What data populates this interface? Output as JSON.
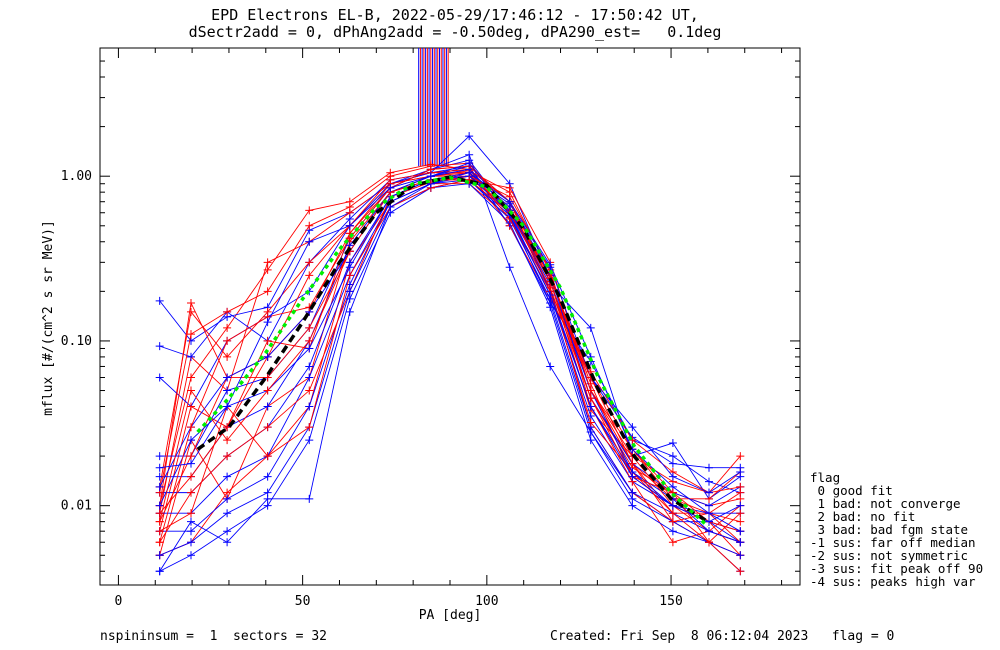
{
  "title_line1": "EPD Electrons EL-B, 2022-05-29/17:46:12 - 17:50:42 UT,",
  "title_line2": "dSectr2add = 0, dPhAng2add = -0.50deg, dPA290_est=   0.1deg",
  "footer_left": "nspininsum =  1  sectors = 32",
  "footer_right": "Created: Fri Sep  8 06:12:04 2023   flag = 0",
  "legend": {
    "title": "flag",
    "items": [
      " 0 good fit",
      " 1 bad: not converge",
      " 2 bad: no fit",
      " 3 bad: bad fgm state",
      "-1 sus: far off median",
      "-2 sus: not symmetric",
      "-3 sus: fit peak off 90",
      "-4 sus: peaks high var"
    ]
  },
  "chart_data": {
    "type": "line",
    "title": "EPD Electrons EL-B, 2022-05-29/17:46:12 - 17:50:42 UT, dSectr2add = 0, dPhAng2add = -0.50deg, dPA290_est=   0.1deg",
    "xlabel": "PA [deg]",
    "ylabel": "mflux [#/(cm^2 s sr MeV)]",
    "xlim": [
      -5,
      185
    ],
    "ylim": [
      0.0033,
      6.0
    ],
    "yscale": "log",
    "x_ticks": [
      0,
      50,
      100,
      150
    ],
    "y_ticks": [
      0.01,
      0.1,
      1.0
    ],
    "y_tick_labels": [
      "0.01",
      "0.10",
      "1.00"
    ],
    "grid": false,
    "colors": {
      "red": "#ff0000",
      "blue": "#0000ff",
      "green": "#00ee00",
      "black": "#000000"
    },
    "pa_bins": [
      11.2,
      19.7,
      29.5,
      40.5,
      51.8,
      62.8,
      73.8,
      84.8,
      95.2,
      106.2,
      117.2,
      128.2,
      139.5,
      150.5,
      160.3,
      168.8
    ],
    "red_traces": [
      [
        0.01,
        0.06,
        0.12,
        0.27,
        0.62,
        0.7,
        1.05,
        1.18,
        1.1,
        0.7,
        0.2,
        0.06,
        0.022,
        0.012,
        0.01,
        0.011
      ],
      [
        0.009,
        0.08,
        0.05,
        0.3,
        0.4,
        0.6,
        0.9,
        1.05,
        1.05,
        0.65,
        0.23,
        0.045,
        0.018,
        0.011,
        0.009,
        0.008
      ],
      [
        0.013,
        0.15,
        0.08,
        0.15,
        0.3,
        0.5,
        0.9,
        1.0,
        1.0,
        0.62,
        0.25,
        0.055,
        0.015,
        0.01,
        0.007,
        0.01
      ],
      [
        0.007,
        0.04,
        0.03,
        0.08,
        0.15,
        0.45,
        0.85,
        1.1,
        1.15,
        0.7,
        0.23,
        0.038,
        0.02,
        0.014,
        0.012,
        0.02
      ],
      [
        0.005,
        0.025,
        0.011,
        0.04,
        0.06,
        0.4,
        0.8,
        0.95,
        1.05,
        0.6,
        0.25,
        0.05,
        0.018,
        0.009,
        0.009,
        0.006
      ],
      [
        0.005,
        0.006,
        0.012,
        0.02,
        0.04,
        0.3,
        0.7,
        0.9,
        0.9,
        0.56,
        0.21,
        0.03,
        0.012,
        0.008,
        0.006,
        0.005
      ],
      [
        0.008,
        0.02,
        0.06,
        0.06,
        0.12,
        0.35,
        0.8,
        1.0,
        1.05,
        0.5,
        0.18,
        0.065,
        0.025,
        0.016,
        0.012,
        0.013
      ],
      [
        0.012,
        0.11,
        0.15,
        0.2,
        0.5,
        0.65,
        1.0,
        1.15,
        1.2,
        0.62,
        0.21,
        0.045,
        0.017,
        0.012,
        0.008,
        0.005
      ],
      [
        0.006,
        0.012,
        0.02,
        0.03,
        0.05,
        0.2,
        0.75,
        0.92,
        1.0,
        0.75,
        0.27,
        0.04,
        0.014,
        0.006,
        0.007,
        0.006
      ],
      [
        0.009,
        0.015,
        0.03,
        0.1,
        0.09,
        0.45,
        0.9,
        1.0,
        1.08,
        0.8,
        0.26,
        0.05,
        0.022,
        0.011,
        0.011,
        0.016
      ],
      [
        0.01,
        0.17,
        0.06,
        0.08,
        0.25,
        0.5,
        0.95,
        1.05,
        1.1,
        0.55,
        0.2,
        0.032,
        0.016,
        0.009,
        0.006,
        0.009
      ],
      [
        0.007,
        0.009,
        0.04,
        0.02,
        0.03,
        0.25,
        0.65,
        0.85,
        0.95,
        0.85,
        0.3,
        0.05,
        0.02,
        0.01,
        0.008,
        0.007
      ],
      [
        0.006,
        0.03,
        0.1,
        0.14,
        0.16,
        0.42,
        0.85,
        1.1,
        1.15,
        0.7,
        0.24,
        0.06,
        0.018,
        0.008,
        0.009,
        0.012
      ],
      [
        0.008,
        0.05,
        0.025,
        0.05,
        0.1,
        0.35,
        0.8,
        0.95,
        0.95,
        0.6,
        0.23,
        0.045,
        0.015,
        0.012,
        0.006,
        0.004
      ]
    ],
    "blue_traces": [
      [
        0.175,
        0.1,
        0.14,
        0.16,
        0.47,
        0.6,
        0.9,
        1.1,
        1.25,
        0.6,
        0.22,
        0.12,
        0.02,
        0.024,
        0.011,
        0.015
      ],
      [
        0.093,
        0.08,
        0.15,
        0.1,
        0.3,
        0.55,
        0.95,
        1.05,
        1.15,
        0.5,
        0.17,
        0.075,
        0.025,
        0.02,
        0.014,
        0.012
      ],
      [
        0.06,
        0.04,
        0.1,
        0.14,
        0.2,
        0.5,
        0.9,
        1.05,
        1.75,
        0.9,
        0.24,
        0.06,
        0.026,
        0.018,
        0.017,
        0.017
      ],
      [
        0.02,
        0.02,
        0.05,
        0.06,
        0.12,
        0.42,
        0.85,
        1.1,
        1.35,
        0.28,
        0.07,
        0.028,
        0.012,
        0.008,
        0.008,
        0.006
      ],
      [
        0.015,
        0.015,
        0.03,
        0.04,
        0.1,
        0.38,
        0.8,
        1.0,
        1.15,
        0.7,
        0.25,
        0.045,
        0.018,
        0.012,
        0.01,
        0.013
      ],
      [
        0.012,
        0.012,
        0.02,
        0.03,
        0.07,
        0.3,
        0.75,
        0.95,
        1.05,
        0.65,
        0.2,
        0.04,
        0.016,
        0.01,
        0.009,
        0.009
      ],
      [
        0.009,
        0.009,
        0.015,
        0.02,
        0.06,
        0.25,
        0.7,
        0.9,
        1.0,
        0.6,
        0.19,
        0.035,
        0.014,
        0.01,
        0.008,
        0.007
      ],
      [
        0.007,
        0.007,
        0.011,
        0.015,
        0.04,
        0.22,
        0.7,
        0.9,
        0.95,
        0.55,
        0.18,
        0.03,
        0.012,
        0.009,
        0.007,
        0.006
      ],
      [
        0.005,
        0.006,
        0.009,
        0.012,
        0.03,
        0.2,
        0.65,
        0.85,
        0.95,
        0.58,
        0.17,
        0.028,
        0.011,
        0.008,
        0.006,
        0.005
      ],
      [
        0.004,
        0.005,
        0.007,
        0.01,
        0.025,
        0.18,
        0.6,
        0.85,
        0.9,
        0.52,
        0.16,
        0.025,
        0.01,
        0.007,
        0.006,
        0.004
      ],
      [
        0.013,
        0.03,
        0.06,
        0.08,
        0.15,
        0.35,
        0.8,
        1.0,
        1.1,
        0.62,
        0.23,
        0.05,
        0.016,
        0.011,
        0.007,
        0.006
      ],
      [
        0.01,
        0.025,
        0.04,
        0.05,
        0.09,
        0.28,
        0.75,
        0.95,
        1.0,
        0.68,
        0.28,
        0.06,
        0.03,
        0.015,
        0.012,
        0.016
      ],
      [
        0.004,
        0.008,
        0.006,
        0.011,
        0.011,
        0.15,
        0.65,
        0.9,
        1.05,
        0.7,
        0.29,
        0.08,
        0.022,
        0.013,
        0.009,
        0.007
      ],
      [
        0.017,
        0.018,
        0.04,
        0.13,
        0.4,
        0.5,
        0.85,
        1.0,
        1.2,
        0.58,
        0.19,
        0.04,
        0.015,
        0.01,
        0.008,
        0.01
      ]
    ],
    "median_fit": {
      "color": "black",
      "style": "dashed",
      "x": [
        21.5,
        30,
        40,
        50,
        60,
        70,
        80,
        90,
        100,
        110,
        120,
        130,
        140,
        150,
        160
      ],
      "y": [
        0.022,
        0.03,
        0.06,
        0.13,
        0.3,
        0.6,
        0.88,
        0.99,
        0.88,
        0.48,
        0.18,
        0.052,
        0.02,
        0.011,
        0.008
      ]
    },
    "green_fit": {
      "color": "green",
      "style": "dotted",
      "x": [
        21.5,
        30,
        40,
        50,
        60,
        70,
        80,
        90,
        100,
        110,
        120,
        130,
        140,
        150,
        160
      ],
      "y": [
        0.028,
        0.045,
        0.085,
        0.18,
        0.36,
        0.65,
        0.9,
        0.98,
        0.86,
        0.5,
        0.21,
        0.062,
        0.023,
        0.012,
        0.0075
      ]
    },
    "spikes": {
      "color": "red_blue",
      "x_start": 81.5,
      "x_end": 89.5,
      "y_base": 1.15,
      "count": 18
    }
  }
}
